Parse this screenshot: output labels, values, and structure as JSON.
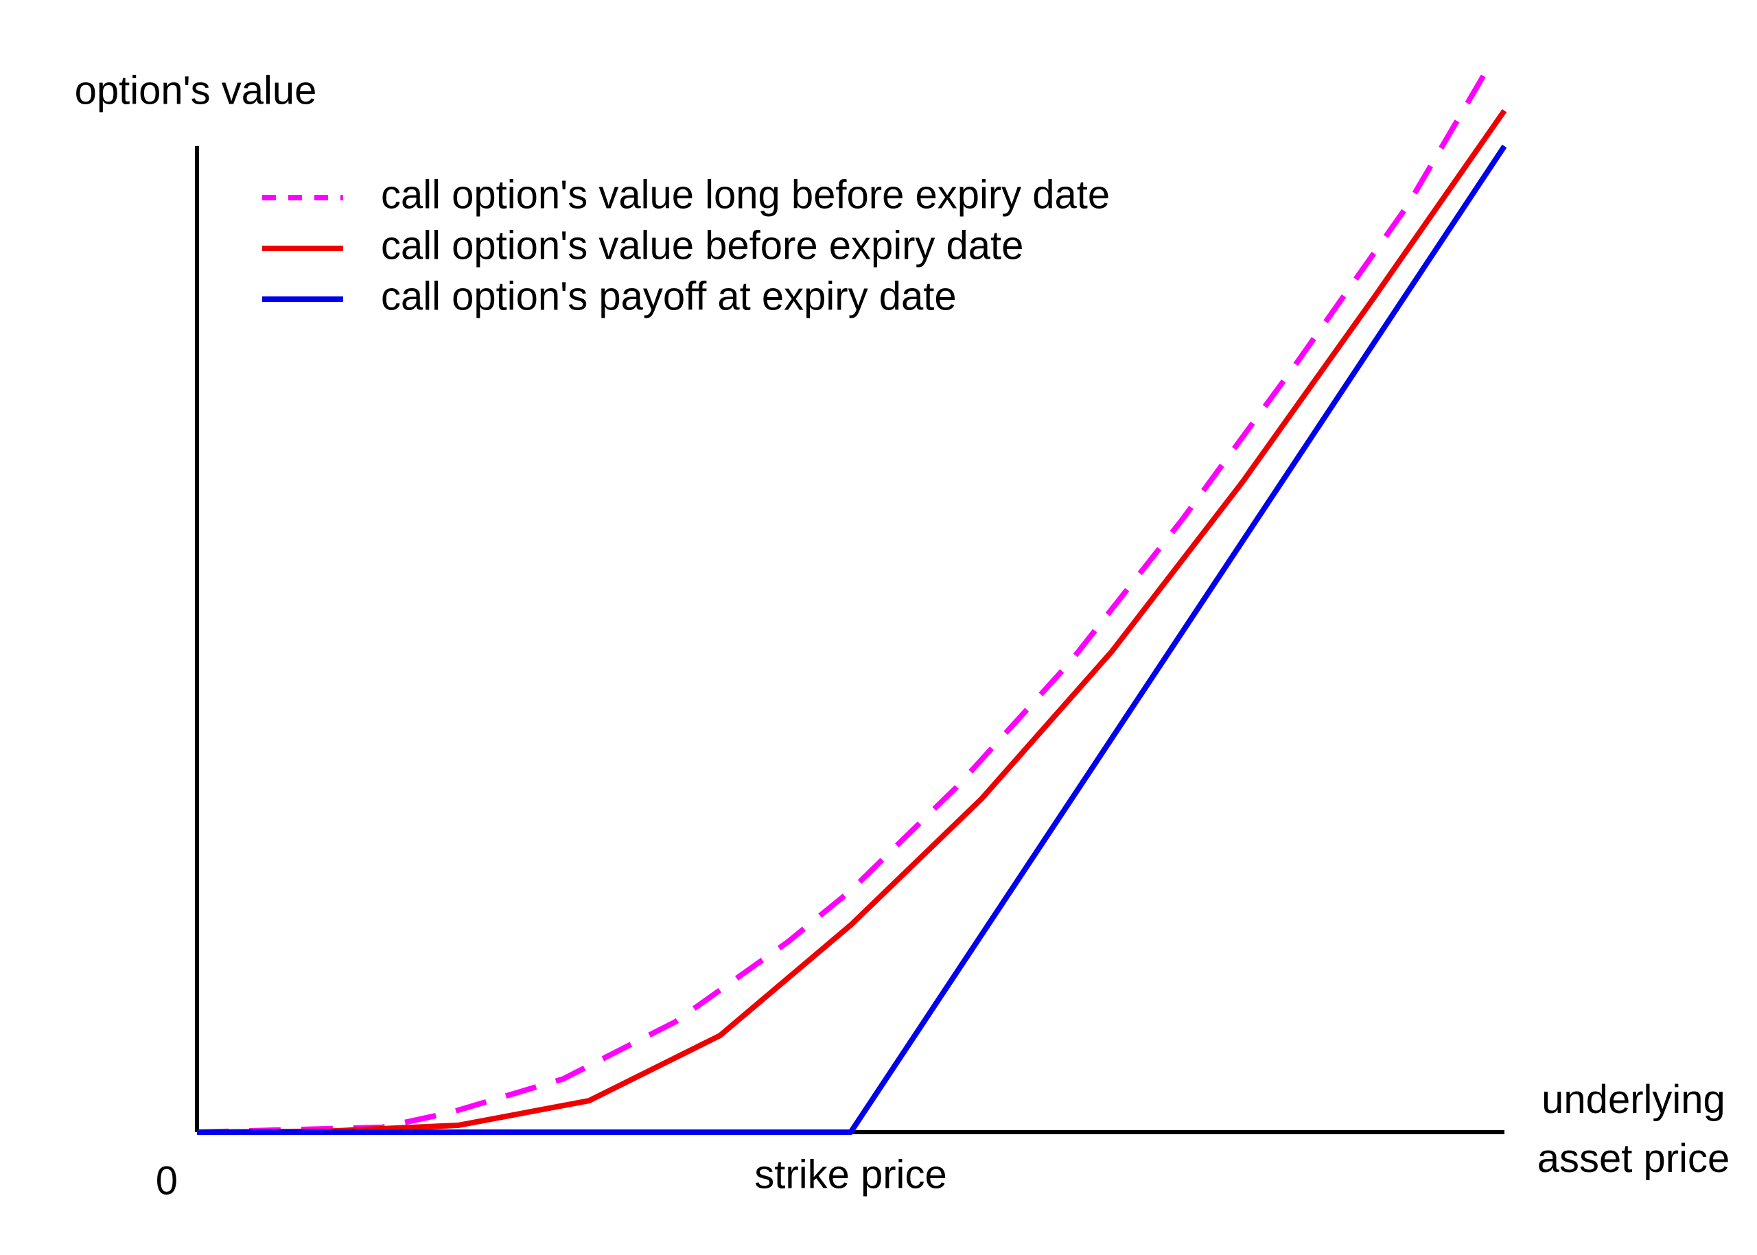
{
  "chart_data": {
    "type": "line",
    "ylabel": "option's value",
    "xlabel": "underlying asset price",
    "xlim": [
      0,
      100
    ],
    "ylim": [
      0,
      100
    ],
    "xticks": [
      0,
      {
        "value": 50,
        "label": "strike price"
      }
    ],
    "grid": false,
    "legend": "upper left",
    "series": [
      {
        "name": "call option's value long before expiry date",
        "color": "#ff00ff",
        "dashed": true,
        "x": [
          0,
          14.2,
          19.4,
          28,
          36.6,
          45.2,
          50,
          58.1,
          66.8,
          75.4,
          84,
          92.6,
          98.6
        ],
        "values": [
          0,
          0.5,
          2,
          5.4,
          11.2,
          19.3,
          24.5,
          35,
          47.7,
          62.2,
          77.8,
          94,
          107.6
        ]
      },
      {
        "name": "call option's value before expiry date",
        "color": "#ee0000",
        "dashed": false,
        "x": [
          0,
          10,
          20,
          30,
          40,
          50,
          60,
          70,
          80,
          90,
          100
        ],
        "values": [
          0,
          0.1,
          0.7,
          3.2,
          9.8,
          21,
          33.8,
          48.8,
          66,
          84.6,
          103.6
        ]
      },
      {
        "name": "call option's payoff at expiry date",
        "color": "#0000ee",
        "dashed": false,
        "x": [
          0,
          50,
          100
        ],
        "values": [
          0,
          0,
          100
        ]
      }
    ]
  }
}
